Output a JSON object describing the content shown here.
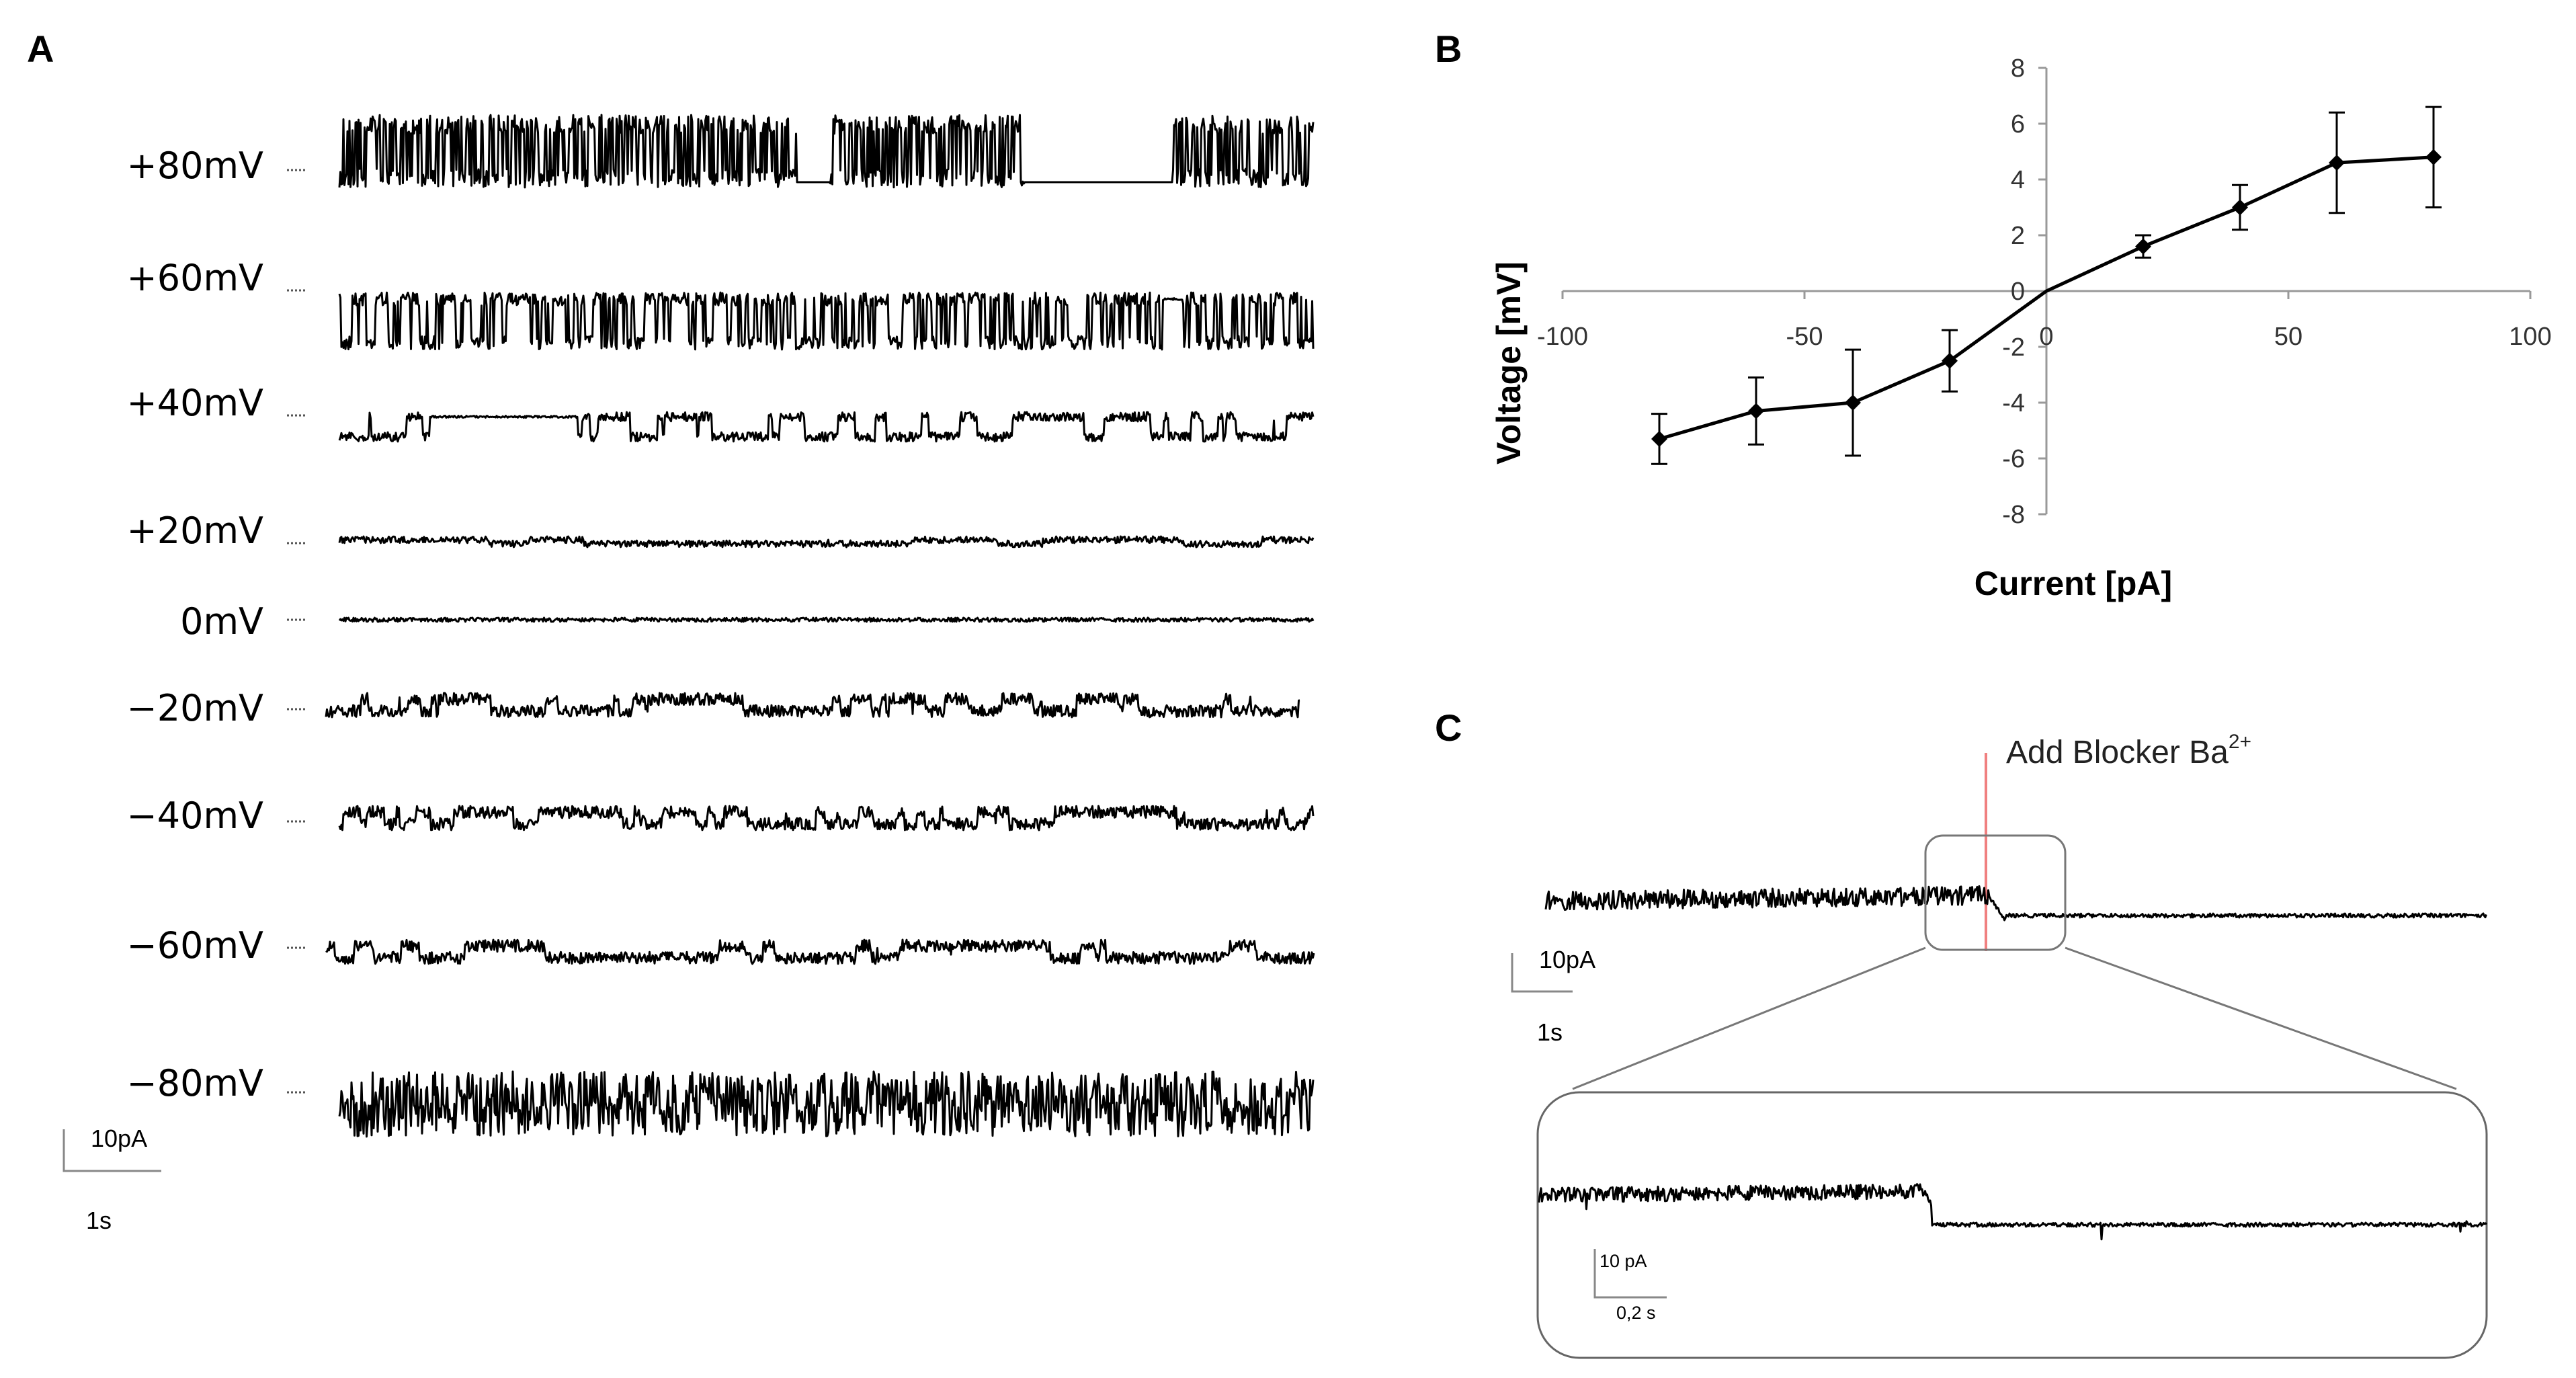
{
  "panels": {
    "A": {
      "letter": "A",
      "traces": [
        {
          "label": "+80mV"
        },
        {
          "label": "+60mV"
        },
        {
          "label": "+40mV"
        },
        {
          "label": "+20mV"
        },
        {
          "label": "0mV"
        },
        {
          "label": "−20mV"
        },
        {
          "label": "−40mV"
        },
        {
          "label": "−60mV"
        },
        {
          "label": "−80mV"
        }
      ],
      "scale_bar": {
        "y_label": "10pA",
        "x_label": "1s"
      }
    },
    "B": {
      "letter": "B"
    },
    "C": {
      "letter": "C",
      "annotation": {
        "text": "Add Blocker Ba",
        "superscript": "2+",
        "line_color": "#f08080"
      },
      "scale_bar": {
        "y_label": "10pA",
        "x_label": "1s"
      },
      "inset_scale_bar": {
        "y_label": "10 pA",
        "x_label": "0,2 s"
      }
    }
  },
  "chart_data": {
    "type": "line",
    "xlabel": "Current  [pA]",
    "ylabel": "Voltage  [mV]",
    "xlim": [
      -100,
      100
    ],
    "ylim": [
      -8,
      8
    ],
    "xticks": [
      -100,
      -50,
      0,
      50,
      100
    ],
    "yticks": [
      8,
      6,
      4,
      2,
      0,
      -2,
      -4,
      -6,
      -8
    ],
    "grid": false,
    "x": [
      -80,
      -60,
      -40,
      -20,
      20,
      40,
      60,
      80
    ],
    "y": [
      -5.3,
      -4.3,
      -4.0,
      -2.5,
      1.6,
      3.0,
      4.6,
      4.8
    ],
    "error": [
      0.9,
      1.2,
      1.9,
      1.1,
      0.4,
      0.8,
      1.8,
      1.8
    ],
    "through_origin": true,
    "marker": "diamond",
    "color": "#000000"
  }
}
